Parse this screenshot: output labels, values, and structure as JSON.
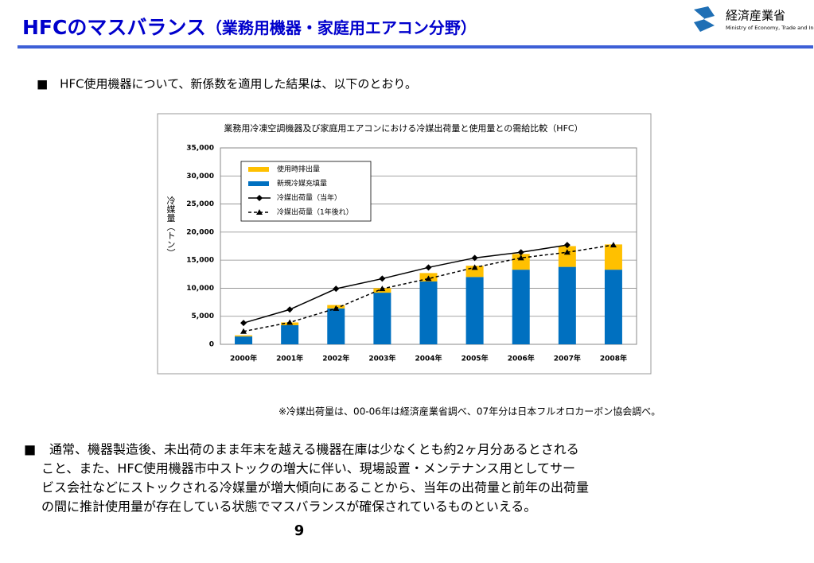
{
  "header": {
    "title": "HFCのマスバランス",
    "subtitle": "（業務用機器・家庭用エアコン分野）",
    "logo": {
      "name": "経済産業省",
      "english": "Ministry of Economy, Trade and Industry"
    }
  },
  "bullet1": "■　HFC使用機器について、新係数を適用した結果は、以下のとおり。",
  "chart_data": {
    "type": "bar",
    "stacked": true,
    "title": "業務用冷凍空調機器及び家庭用エアコンにおける冷媒出荷量と使用量との需給比較（HFC）",
    "ylabel": "冷媒量（トン）",
    "categories": [
      "2000年",
      "2001年",
      "2002年",
      "2003年",
      "2004年",
      "2005年",
      "2006年",
      "2007年",
      "2008年"
    ],
    "series": [
      {
        "name": "新規冷媒充填量",
        "type": "bar",
        "color": "#0070c0",
        "values": [
          1400,
          3400,
          6400,
          9200,
          11200,
          12000,
          13300,
          13800,
          13300
        ]
      },
      {
        "name": "使用時排出量",
        "type": "bar",
        "color": "#ffc000",
        "values": [
          200,
          500,
          600,
          800,
          1500,
          2000,
          2800,
          3700,
          4500
        ]
      },
      {
        "name": "冷媒出荷量（当年）",
        "type": "line",
        "color": "#000000",
        "marker": "diamond",
        "dashed": false,
        "values": [
          3800,
          6200,
          9900,
          11700,
          13700,
          15400,
          16400,
          17700,
          null
        ]
      },
      {
        "name": "冷媒出荷量（1年後れ）",
        "type": "line",
        "color": "#000000",
        "marker": "triangle",
        "dashed": true,
        "values": [
          2300,
          3900,
          6400,
          9900,
          11700,
          13700,
          15400,
          16400,
          17700
        ]
      }
    ],
    "legend_order": [
      1,
      0,
      2,
      3
    ],
    "ylim": [
      0,
      35000
    ],
    "yticks": [
      0,
      {
        "value": 5000,
        "label": "5,000"
      },
      {
        "value": 10000,
        "label": "10,000"
      },
      {
        "value": 15000,
        "label": "15,000"
      },
      {
        "value": 20000,
        "label": "20,000"
      },
      {
        "value": 25000,
        "label": "25,000"
      },
      {
        "value": 30000,
        "label": "30,000"
      },
      {
        "value": 35000,
        "label": "35,000"
      }
    ],
    "grid": true
  },
  "note": "※冷媒出荷量は、00-06年は経済産業省調べ、07年分は日本フルオロカーボン協会調べ。",
  "bullet2": {
    "marker": "■",
    "lines": [
      "通常、機器製造後、未出荷のまま年末を越える機器在庫は少なくとも約2ヶ月分あるとされる",
      "こと、また、HFC使用機器市中ストックの増大に伴い、現場設置・メンテナンス用としてサー",
      "ビス会社などにストックされる冷媒量が増大傾向にあることから、当年の出荷量と前年の出荷量",
      "の間に推計使用量が存在している状態でマスバランスが確保されているものといえる。"
    ]
  },
  "page_number": "9"
}
